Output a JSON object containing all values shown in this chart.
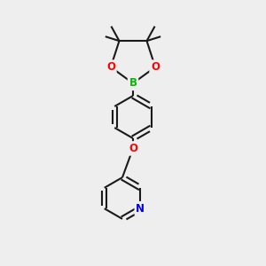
{
  "bg_color": "#eeeeee",
  "bond_color": "#1a1a1a",
  "bond_width": 1.5,
  "atom_colors": {
    "B": "#00bb00",
    "O": "#ff0000",
    "N": "#0000ee",
    "C": "#1a1a1a"
  },
  "font_size_atom": 8.5,
  "fig_width": 3.0,
  "fig_height": 3.0,
  "dpi": 100
}
